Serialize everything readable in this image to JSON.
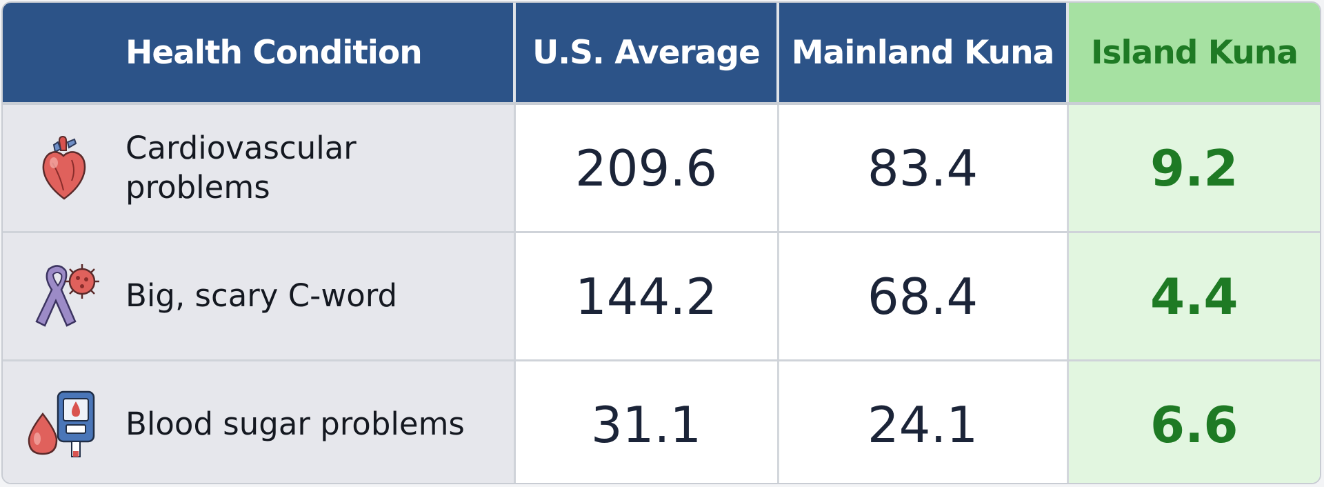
{
  "table": {
    "headers": [
      "Health Condition",
      "U.S. Average",
      "Mainland Kuna",
      "Island Kuna"
    ],
    "rows": [
      {
        "icon": "heart-icon",
        "condition": "Cardiovascular problems",
        "us_average": "209.6",
        "mainland_kuna": "83.4",
        "island_kuna": "9.2"
      },
      {
        "icon": "cancer-ribbon-icon",
        "condition": "Big, scary C-word",
        "us_average": "144.2",
        "mainland_kuna": "68.4",
        "island_kuna": "4.4"
      },
      {
        "icon": "glucose-meter-icon",
        "condition": "Blood sugar problems",
        "us_average": "31.1",
        "mainland_kuna": "24.1",
        "island_kuna": "6.6"
      }
    ]
  },
  "colors": {
    "header_bg": "#2c5388",
    "island_header_bg": "#a6e1a2",
    "island_text": "#1e7a24",
    "island_cell_bg": "#e2f6e0",
    "condition_cell_bg": "#e6e7ec"
  },
  "chart_data": {
    "type": "table",
    "categories": [
      "Cardiovascular problems",
      "Big, scary C-word",
      "Blood sugar problems"
    ],
    "series": [
      {
        "name": "U.S. Average",
        "values": [
          209.6,
          144.2,
          31.1
        ]
      },
      {
        "name": "Mainland Kuna",
        "values": [
          83.4,
          68.4,
          24.1
        ]
      },
      {
        "name": "Island Kuna",
        "values": [
          9.2,
          4.4,
          6.6
        ]
      }
    ]
  }
}
